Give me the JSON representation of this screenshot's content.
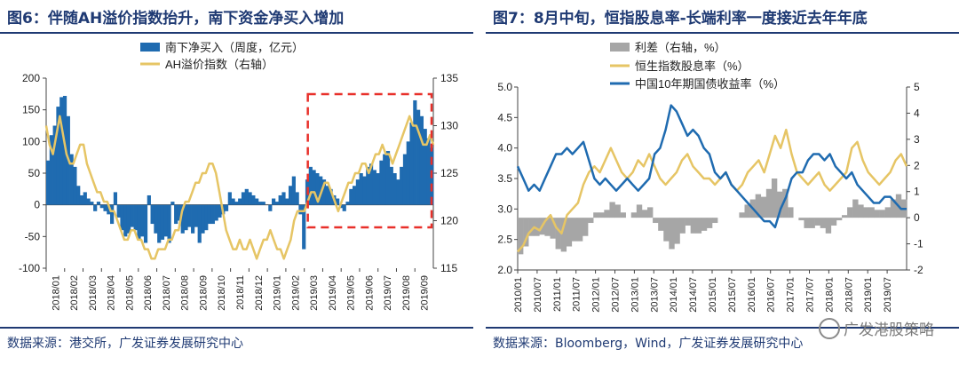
{
  "left": {
    "title": "图6：伴随AH溢价指数抬升，南下资金净买入增加",
    "source": "数据来源：港交所，广发证券发展研究中心",
    "chart_data": {
      "type": "bar+line",
      "legend": [
        "南下净买入（周度，亿元）",
        "AH溢价指数（右轴）"
      ],
      "colors": {
        "bar": "#1f6bb0",
        "line": "#e6c565",
        "box": "#e8302a"
      },
      "y_left": {
        "min": -100,
        "max": 200,
        "ticks": [
          "200",
          "150",
          "100",
          "50",
          "0",
          "-50",
          "-100"
        ]
      },
      "y_right": {
        "min": 115,
        "max": 135,
        "ticks": [
          "135",
          "130",
          "125",
          "120",
          "115"
        ]
      },
      "x_ticks": [
        "2018/01",
        "2018/02",
        "2018/03",
        "2018/04",
        "2018/05",
        "2018/06",
        "2018/07",
        "2018/08",
        "2018/09",
        "2018/10",
        "2018/11",
        "2018/12",
        "2019/01",
        "2019/02",
        "2019/03",
        "2019/04",
        "2019/05",
        "2019/06",
        "2019/07",
        "2019/08",
        "2019/09"
      ],
      "highlight_range": [
        "2019/03",
        "2019/09"
      ],
      "southbound_weekly": [
        70,
        110,
        125,
        155,
        170,
        172,
        140,
        80,
        60,
        30,
        15,
        20,
        10,
        5,
        -10,
        5,
        -5,
        -10,
        -15,
        -30,
        20,
        -20,
        -40,
        -50,
        -45,
        -35,
        -40,
        -55,
        -50,
        -60,
        15,
        -30,
        -45,
        -60,
        -55,
        -50,
        -60,
        5,
        -30,
        -25,
        -45,
        -40,
        -35,
        -45,
        -35,
        -60,
        -45,
        -40,
        -30,
        -30,
        -25,
        -20,
        -15,
        -10,
        20,
        10,
        5,
        10,
        20,
        25,
        20,
        15,
        10,
        5,
        5,
        0,
        -10,
        10,
        5,
        15,
        20,
        10,
        30,
        45,
        20,
        -15,
        -70,
        40,
        60,
        55,
        50,
        45,
        40,
        30,
        25,
        15,
        10,
        -5,
        -10,
        5,
        25,
        30,
        40,
        50,
        45,
        60,
        65,
        55,
        50,
        70,
        80,
        85,
        60,
        50,
        40,
        60,
        80,
        100,
        130,
        165,
        150,
        140,
        120,
        105,
        90
      ],
      "ah_premium": [
        130,
        128,
        127,
        129,
        131,
        129,
        127,
        126,
        126,
        127,
        128,
        128,
        126,
        125,
        124,
        123,
        123,
        122,
        122,
        121,
        121,
        120,
        119,
        118,
        118,
        119,
        119,
        118,
        118,
        117,
        117,
        116,
        116,
        117,
        117,
        117,
        118,
        118,
        119,
        119,
        121,
        122,
        122,
        123,
        124,
        124,
        125,
        125,
        126,
        126,
        125,
        123,
        121,
        119,
        118,
        117,
        117,
        118,
        117,
        117,
        118,
        117,
        116,
        117,
        118,
        118,
        119,
        118,
        117,
        117,
        116,
        117,
        118,
        120,
        121,
        121,
        121,
        122,
        123,
        123,
        122,
        123,
        124,
        124,
        123,
        122,
        121,
        122,
        123,
        124,
        124,
        125,
        125,
        126,
        126,
        125,
        126,
        127,
        127,
        128,
        127,
        127,
        126,
        127,
        128,
        129,
        130,
        131,
        130,
        130,
        129,
        128,
        128,
        129,
        128
      ]
    }
  },
  "right": {
    "title": "图7：8月中旬，恒指股息率-长端利率一度接近去年年底",
    "source": "数据来源：Bloomberg，Wind，广发证券发展研究中心",
    "watermark": "广发港股策略",
    "chart_data": {
      "type": "area+line",
      "legend": [
        "利差（右轴，%）",
        "恒生指数股息率（%）",
        "中国10年期国债收益率（%）"
      ],
      "colors": {
        "spread": "#a6a6a6",
        "dividend": "#e6c565",
        "yield": "#1f6bb0"
      },
      "y_left": {
        "min": 2.0,
        "max": 5.0,
        "ticks": [
          "5.0",
          "4.5",
          "4.0",
          "3.5",
          "3.0",
          "2.5",
          "2.0"
        ]
      },
      "y_right": {
        "min": -2,
        "max": 5,
        "ticks": [
          "5",
          "4",
          "3",
          "2",
          "1",
          "0",
          "-1",
          "-2"
        ]
      },
      "x_ticks": [
        "2010/01",
        "2010/07",
        "2011/01",
        "2011/07",
        "2012/01",
        "2012/07",
        "2013/01",
        "2013/07",
        "2014/01",
        "2014/07",
        "2015/01",
        "2015/07",
        "2016/01",
        "2016/07",
        "2017/01",
        "2017/07",
        "2018/01",
        "2018/07",
        "2019/01",
        "2019/07"
      ],
      "dividend_yield": [
        2.3,
        2.4,
        2.6,
        2.7,
        2.65,
        2.8,
        2.9,
        2.7,
        2.6,
        2.9,
        3.0,
        3.1,
        3.4,
        3.6,
        3.7,
        3.6,
        3.8,
        4.0,
        3.8,
        3.6,
        3.5,
        3.6,
        3.8,
        3.7,
        3.9,
        3.7,
        3.5,
        3.4,
        3.5,
        3.6,
        3.8,
        3.9,
        3.7,
        3.6,
        3.5,
        3.5,
        3.4,
        3.5,
        3.6,
        3.4,
        3.3,
        3.4,
        3.6,
        3.7,
        3.8,
        3.6,
        3.9,
        4.2,
        4.0,
        4.3,
        3.9,
        3.6,
        3.5,
        3.4,
        3.5,
        3.6,
        3.4,
        3.3,
        3.4,
        3.5,
        3.6,
        4.0,
        4.1,
        3.8,
        3.6,
        3.5,
        3.4,
        3.5,
        3.6,
        3.8,
        3.9,
        3.7
      ],
      "cn_10y": [
        3.7,
        3.5,
        3.3,
        3.4,
        3.3,
        3.5,
        3.7,
        3.9,
        3.9,
        4.0,
        3.9,
        4.0,
        4.1,
        3.8,
        3.5,
        3.4,
        3.5,
        3.4,
        3.3,
        3.4,
        3.5,
        3.4,
        3.3,
        3.4,
        3.5,
        3.9,
        4.0,
        4.3,
        4.7,
        4.6,
        4.4,
        4.2,
        4.3,
        4.2,
        4.0,
        3.9,
        3.6,
        3.5,
        3.6,
        3.4,
        3.3,
        3.2,
        3.1,
        3.0,
        2.9,
        2.8,
        2.8,
        2.7,
        3.0,
        3.2,
        3.5,
        3.6,
        3.6,
        3.8,
        3.9,
        3.9,
        3.8,
        3.9,
        3.7,
        3.6,
        3.5,
        3.6,
        3.4,
        3.3,
        3.2,
        3.1,
        3.1,
        3.2,
        3.2,
        3.1,
        3.0,
        3.0
      ]
    }
  }
}
